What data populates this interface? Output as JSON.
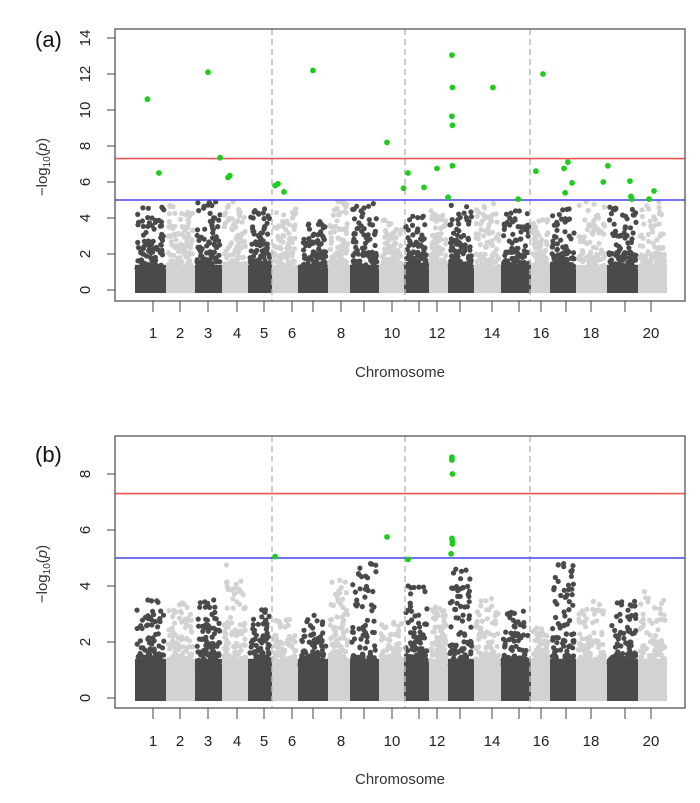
{
  "chart_data": [
    {
      "type": "scatter",
      "subtype": "manhattan",
      "panel_label": "(a)",
      "xlabel": "Chromosome",
      "ylabel_parts": [
        "−log",
        "10",
        "(",
        "p",
        ")"
      ],
      "ylim": [
        0,
        14
      ],
      "yticks": [
        0,
        2,
        4,
        6,
        8,
        10,
        12,
        14
      ],
      "xtick_labels": [
        "1",
        "2",
        "3",
        "4",
        "5",
        "6",
        "",
        "8",
        "",
        "10",
        "",
        "12",
        "",
        "14",
        "",
        "16",
        "",
        "18",
        "",
        "20"
      ],
      "chromosomes": [
        1,
        2,
        3,
        4,
        5,
        6,
        7,
        8,
        9,
        10,
        11,
        12,
        13,
        14,
        15,
        16,
        17,
        18,
        19,
        20
      ],
      "thresholds": [
        {
          "value": 7.3,
          "color": "#f05555"
        },
        {
          "value": 5.0,
          "color": "#4444ee"
        }
      ],
      "background_peaks": [
        4.6,
        4.7,
        4.9,
        4.9,
        4.5,
        4.5,
        3.8,
        4.9,
        4.8,
        3.9,
        4.1,
        4.4,
        4.7,
        4.8,
        4.4,
        3.9,
        4.5,
        4.9,
        4.6,
        4.9
      ],
      "significant_points": [
        {
          "chr": 1,
          "pos": 0.4,
          "logp": 10.6
        },
        {
          "chr": 1,
          "pos": 0.77,
          "logp": 6.5
        },
        {
          "chr": 3,
          "pos": 0.48,
          "logp": 12.1
        },
        {
          "chr": 3,
          "pos": 0.93,
          "logp": 7.35
        },
        {
          "chr": 4,
          "pos": 0.23,
          "logp": 6.25
        },
        {
          "chr": 4,
          "pos": 0.3,
          "logp": 6.35
        },
        {
          "chr": 6,
          "pos": 0.12,
          "logp": 5.8
        },
        {
          "chr": 6,
          "pos": 0.23,
          "logp": 5.9
        },
        {
          "chr": 6,
          "pos": 0.46,
          "logp": 5.45
        },
        {
          "chr": 7,
          "pos": 0.5,
          "logp": 12.2
        },
        {
          "chr": 10,
          "pos": 0.32,
          "logp": 8.2
        },
        {
          "chr": 10,
          "pos": 0.98,
          "logp": 5.65
        },
        {
          "chr": 11,
          "pos": 0.16,
          "logp": 6.5
        },
        {
          "chr": 11,
          "pos": 0.8,
          "logp": 5.7
        },
        {
          "chr": 12,
          "pos": 0.42,
          "logp": 6.75
        },
        {
          "chr": 13,
          "pos": 0.0,
          "logp": 5.15
        },
        {
          "chr": 13,
          "pos": 0.15,
          "logp": 13.05
        },
        {
          "chr": 13,
          "pos": 0.17,
          "logp": 11.25
        },
        {
          "chr": 13,
          "pos": 0.15,
          "logp": 9.65
        },
        {
          "chr": 13,
          "pos": 0.17,
          "logp": 9.15
        },
        {
          "chr": 13,
          "pos": 0.17,
          "logp": 6.9
        },
        {
          "chr": 14,
          "pos": 0.7,
          "logp": 11.25
        },
        {
          "chr": 15,
          "pos": 0.57,
          "logp": 5.05
        },
        {
          "chr": 16,
          "pos": 0.26,
          "logp": 6.6
        },
        {
          "chr": 16,
          "pos": 0.63,
          "logp": 12.0
        },
        {
          "chr": 17,
          "pos": 0.54,
          "logp": 6.75
        },
        {
          "chr": 17,
          "pos": 0.58,
          "logp": 5.4
        },
        {
          "chr": 17,
          "pos": 0.69,
          "logp": 7.1
        },
        {
          "chr": 17,
          "pos": 0.85,
          "logp": 5.95
        },
        {
          "chr": 18,
          "pos": 0.88,
          "logp": 6.0
        },
        {
          "chr": 19,
          "pos": 0.03,
          "logp": 6.9
        },
        {
          "chr": 19,
          "pos": 0.74,
          "logp": 6.05
        },
        {
          "chr": 19,
          "pos": 0.77,
          "logp": 5.2
        },
        {
          "chr": 19,
          "pos": 0.8,
          "logp": 5.05
        },
        {
          "chr": 20,
          "pos": 0.38,
          "logp": 5.05
        },
        {
          "chr": 20,
          "pos": 0.55,
          "logp": 5.5
        }
      ],
      "grid": false,
      "dashed_separators_after_chr": [
        5,
        10,
        15
      ]
    },
    {
      "type": "scatter",
      "subtype": "manhattan",
      "panel_label": "(b)",
      "xlabel": "Chromosome",
      "ylabel_parts": [
        "−log",
        "10",
        "(",
        "p",
        ")"
      ],
      "ylim": [
        0,
        9.5
      ],
      "yticks": [
        0,
        2,
        4,
        6,
        8
      ],
      "xtick_labels": [
        "1",
        "2",
        "3",
        "4",
        "5",
        "6",
        "",
        "8",
        "",
        "10",
        "",
        "12",
        "",
        "14",
        "",
        "16",
        "",
        "18",
        "",
        "20"
      ],
      "chromosomes": [
        1,
        2,
        3,
        4,
        5,
        6,
        7,
        8,
        9,
        10,
        11,
        12,
        13,
        14,
        15,
        16,
        17,
        18,
        19,
        20
      ],
      "thresholds": [
        {
          "value": 7.3,
          "color": "#f05555"
        },
        {
          "value": 5.0,
          "color": "#4444ee"
        }
      ],
      "background_peaks": [
        3.5,
        3.4,
        3.5,
        4.75,
        3.15,
        2.8,
        2.95,
        4.2,
        4.8,
        2.7,
        4.0,
        3.25,
        4.6,
        3.55,
        3.1,
        2.5,
        4.8,
        3.45,
        3.45,
        3.8
      ],
      "significant_points": [
        {
          "chr": 6,
          "pos": 0.12,
          "logp": 5.05
        },
        {
          "chr": 10,
          "pos": 0.32,
          "logp": 5.75
        },
        {
          "chr": 11,
          "pos": 0.16,
          "logp": 4.95
        },
        {
          "chr": 13,
          "pos": 0.15,
          "logp": 8.6
        },
        {
          "chr": 13,
          "pos": 0.15,
          "logp": 8.5
        },
        {
          "chr": 13,
          "pos": 0.17,
          "logp": 8.0
        },
        {
          "chr": 13,
          "pos": 0.15,
          "logp": 5.7
        },
        {
          "chr": 13,
          "pos": 0.17,
          "logp": 5.6
        },
        {
          "chr": 13,
          "pos": 0.17,
          "logp": 5.5
        },
        {
          "chr": 13,
          "pos": 0.12,
          "logp": 5.15
        }
      ],
      "grid": false,
      "dashed_separators_after_chr": [
        5,
        10,
        15
      ]
    }
  ],
  "colors": {
    "dark_chromosome": "#4a4a4a",
    "light_chromosome": "#d2d2d2",
    "significant": "#1ecc1e",
    "separator": "#bbbbbb"
  }
}
